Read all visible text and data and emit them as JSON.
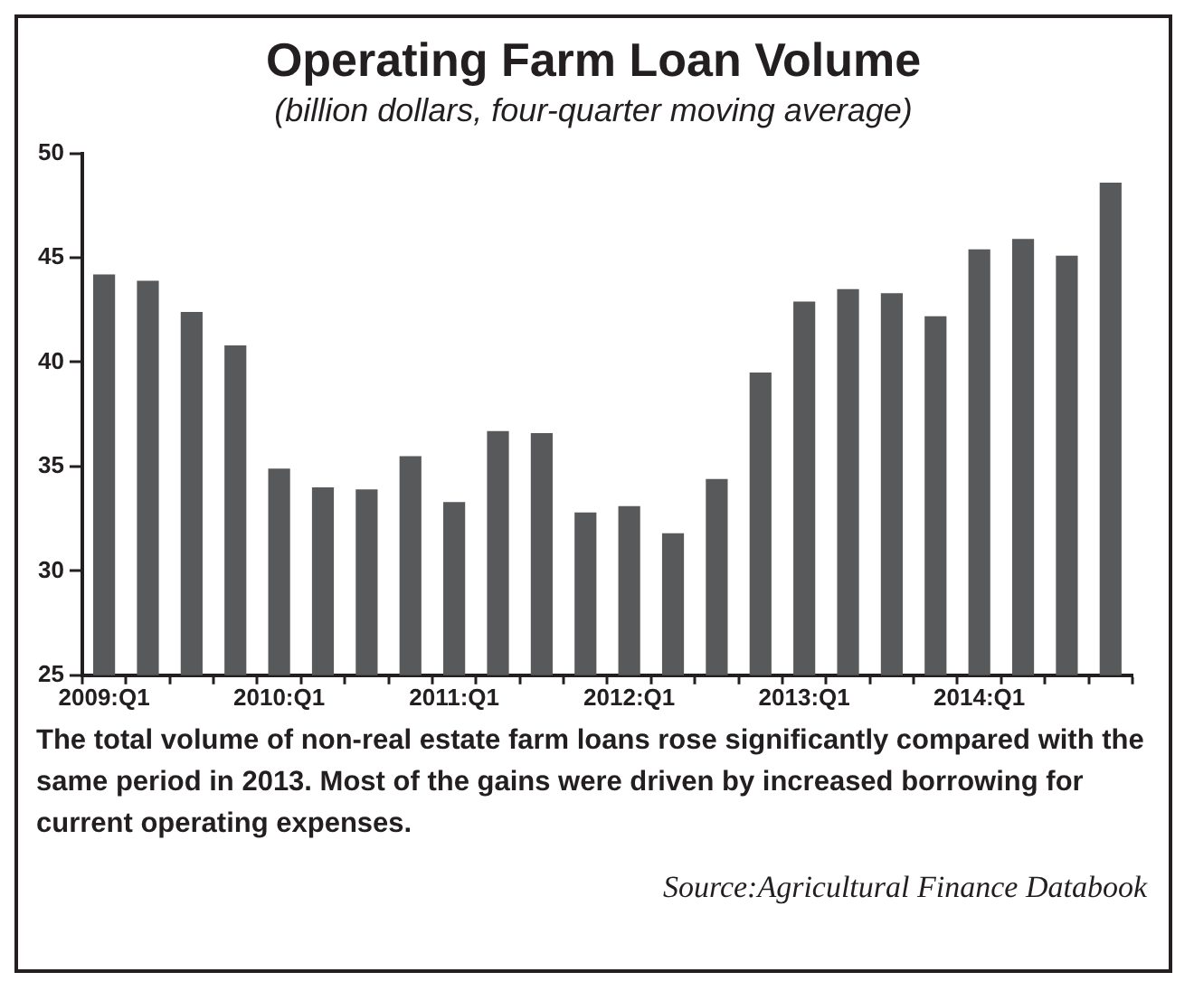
{
  "chart_data": {
    "type": "bar",
    "title": "Operating Farm Loan Volume",
    "subtitle": "(billion dollars, four-quarter moving average)",
    "categories": [
      "2009:Q1",
      null,
      null,
      null,
      "2010:Q1",
      null,
      null,
      null,
      "2011:Q1",
      null,
      null,
      null,
      "2012:Q1",
      null,
      null,
      null,
      "2013:Q1",
      null,
      null,
      null,
      "2014:Q1",
      null,
      null,
      null
    ],
    "values": [
      44.2,
      43.9,
      42.4,
      40.8,
      34.9,
      34.0,
      33.9,
      35.5,
      33.3,
      36.7,
      36.6,
      32.8,
      33.1,
      31.8,
      34.4,
      39.5,
      42.9,
      43.5,
      43.3,
      42.2,
      45.4,
      45.9,
      45.1,
      48.6
    ],
    "color": "#58595b",
    "ylim": [
      25,
      50
    ],
    "yticks": [
      25,
      30,
      35,
      40,
      45,
      50
    ],
    "annotations": [
      "The total volume of non-real estate farm loans rose significantly compared with the same period in 2013. Most of the gains were driven by increased borrowing for current operating expenses.",
      "Source:Agricultural Finance Databook"
    ]
  }
}
